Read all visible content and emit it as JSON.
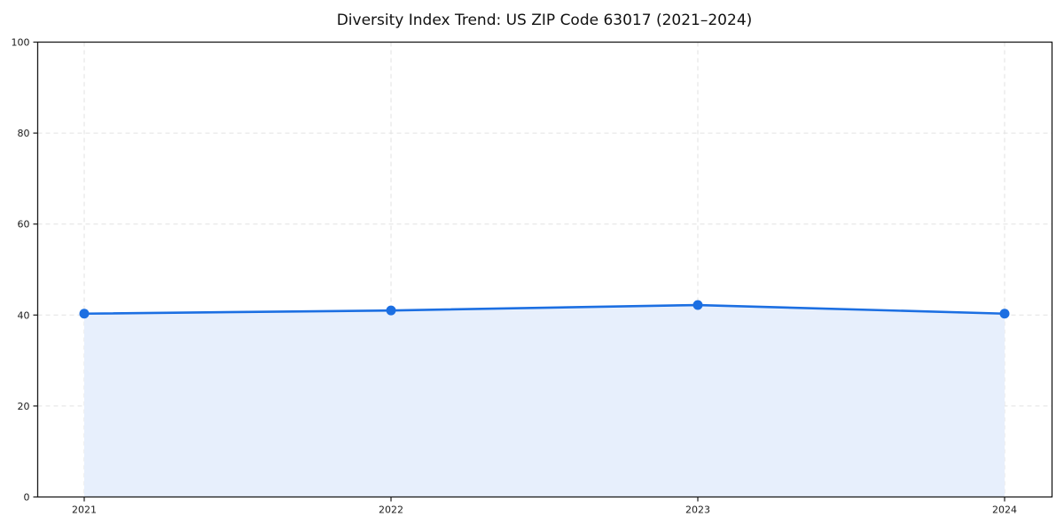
{
  "page": {
    "background_color": "#ffffff"
  },
  "chart_data": {
    "type": "area",
    "title": "Diversity Index Trend: US ZIP Code 63017 (2021–2024)",
    "categories": [
      "2021",
      "2022",
      "2023",
      "2024"
    ],
    "series": [
      {
        "name": "Diversity Index",
        "values": [
          40.3,
          41.0,
          42.2,
          40.3
        ]
      }
    ],
    "xlabel": "",
    "ylabel": "",
    "ylim": [
      0,
      100
    ],
    "yticks": [
      0,
      20,
      40,
      60,
      80,
      100
    ],
    "grid": "dashed",
    "legend": "none",
    "colors": {
      "line": "#1c6fe2",
      "marker": "#1c6fe2",
      "area_fill": "#e7effc",
      "gridline": "#e2e2e2",
      "spine": "#1a1a1a",
      "title_text": "#111111",
      "tick_text": "#1a1a1a"
    }
  }
}
